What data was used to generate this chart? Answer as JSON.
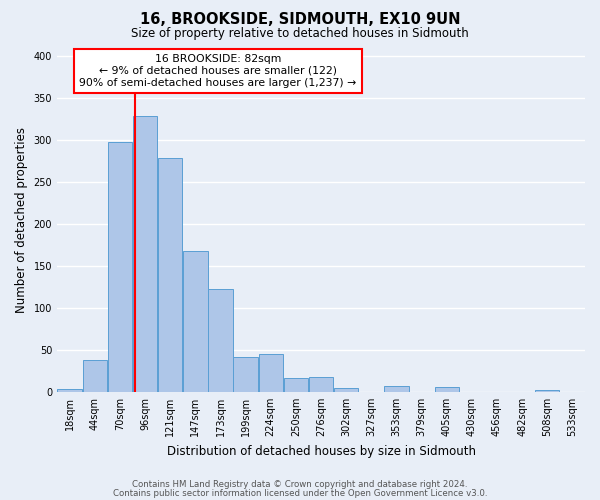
{
  "title": "16, BROOKSIDE, SIDMOUTH, EX10 9UN",
  "subtitle": "Size of property relative to detached houses in Sidmouth",
  "xlabel": "Distribution of detached houses by size in Sidmouth",
  "ylabel": "Number of detached properties",
  "bar_labels": [
    "18sqm",
    "44sqm",
    "70sqm",
    "96sqm",
    "121sqm",
    "147sqm",
    "173sqm",
    "199sqm",
    "224sqm",
    "250sqm",
    "276sqm",
    "302sqm",
    "327sqm",
    "353sqm",
    "379sqm",
    "405sqm",
    "430sqm",
    "456sqm",
    "482sqm",
    "508sqm",
    "533sqm"
  ],
  "bar_values": [
    3,
    38,
    297,
    328,
    278,
    168,
    122,
    42,
    45,
    16,
    18,
    5,
    0,
    7,
    0,
    6,
    0,
    0,
    0,
    2,
    0
  ],
  "bar_color": "#aec6e8",
  "bar_edge_color": "#5a9fd4",
  "background_color": "#e8eef7",
  "grid_color": "#ffffff",
  "vline_index": 2.61,
  "vline_color": "red",
  "annotation_title": "16 BROOKSIDE: 82sqm",
  "annotation_line1": "← 9% of detached houses are smaller (122)",
  "annotation_line2": "90% of semi-detached houses are larger (1,237) →",
  "ylim": [
    0,
    410
  ],
  "yticks": [
    0,
    50,
    100,
    150,
    200,
    250,
    300,
    350,
    400
  ],
  "footer1": "Contains HM Land Registry data © Crown copyright and database right 2024.",
  "footer2": "Contains public sector information licensed under the Open Government Licence v3.0."
}
